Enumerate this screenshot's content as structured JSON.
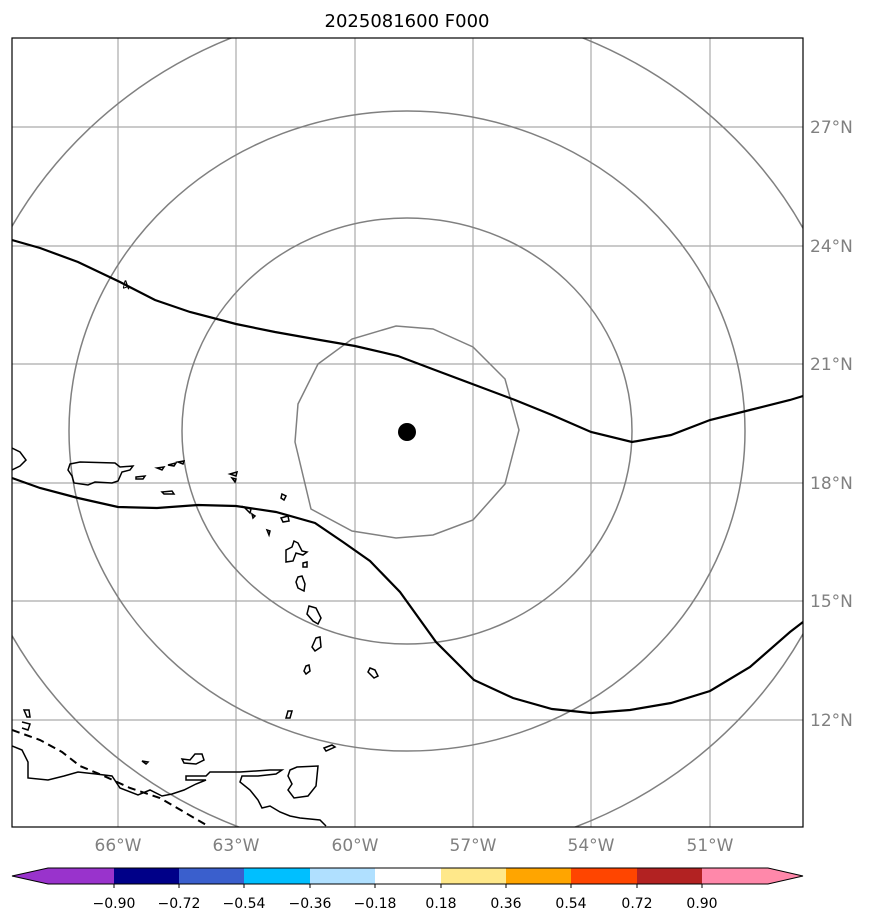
{
  "title": "2025081600 F000",
  "map": {
    "lon_ticks": [
      "66°W",
      "63°W",
      "60°W",
      "57°W",
      "54°W",
      "51°W"
    ],
    "lat_ticks": [
      "27°N",
      "24°N",
      "21°N",
      "18°N",
      "15°N",
      "12°N"
    ],
    "grid_color": "#aaaaaa",
    "tick_label_color": "#808080",
    "range_ring_color": "#808080",
    "contour_color": "#000000",
    "contour_label": "4",
    "storm_center_marker": "filled-circle"
  },
  "colorbar": {
    "tick_labels": [
      "−0.90",
      "−0.72",
      "−0.54",
      "−0.36",
      "−0.18",
      "0.18",
      "0.36",
      "0.54",
      "0.72",
      "0.90"
    ],
    "colors": [
      "#9933cc",
      "#000088",
      "#3a5fcd",
      "#00bfff",
      "#b0e0ff",
      "#ffffff",
      "#ffe88a",
      "#ffa500",
      "#ff4500",
      "#b22222",
      "#ff88aa"
    ],
    "extend": "both"
  }
}
